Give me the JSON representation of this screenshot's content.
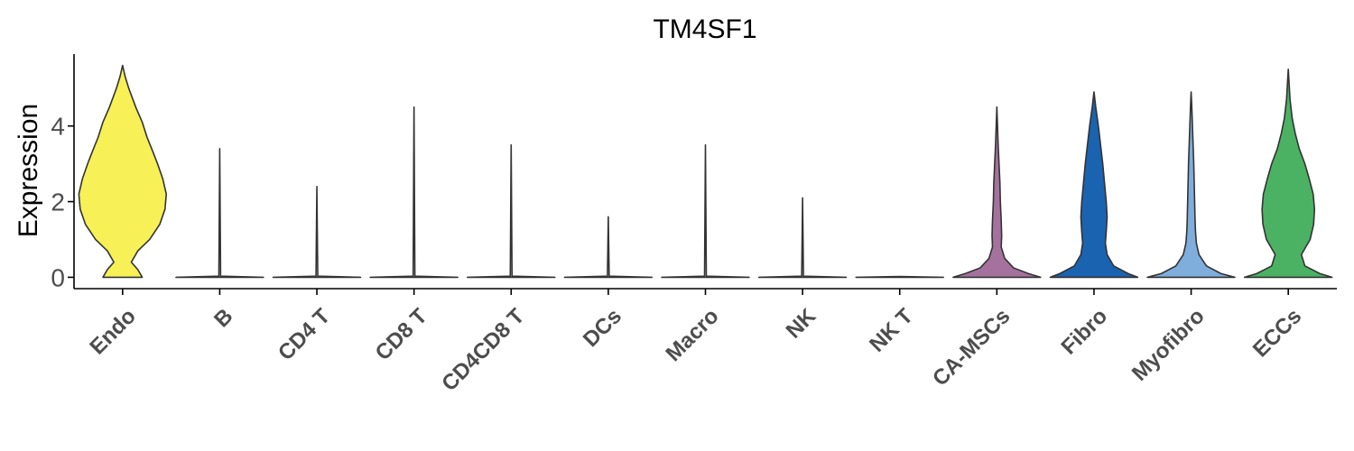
{
  "chart_data": {
    "type": "violin",
    "title": "TM4SF1",
    "xlabel": "",
    "ylabel": "Expression",
    "ylim": [
      -0.3,
      5.9
    ],
    "yticks": [
      0,
      2,
      4
    ],
    "grid": false,
    "legend": "none",
    "categories": [
      "Endo",
      "B",
      "CD4 T",
      "CD8 T",
      "CD4CD8 T",
      "DCs",
      "Macro",
      "NK",
      "NK T",
      "CA-MSCs",
      "Fibro",
      "Myofibro",
      "ECCs"
    ],
    "colors": [
      "#F7F057",
      "#E5E5E5",
      "#E5E5E5",
      "#E5E5E5",
      "#E5E5E5",
      "#E5E5E5",
      "#E5E5E5",
      "#E5E5E5",
      "#E5E5E5",
      "#A5729E",
      "#1A63B0",
      "#7FAEDD",
      "#4BB264"
    ],
    "max_expression": [
      5.6,
      3.4,
      2.4,
      4.5,
      3.5,
      1.6,
      3.5,
      2.1,
      0.0,
      4.5,
      4.9,
      4.9,
      5.5
    ],
    "density_profiles": [
      [
        [
          0.0,
          0.45
        ],
        [
          0.2,
          0.35
        ],
        [
          0.4,
          0.2
        ],
        [
          0.7,
          0.35
        ],
        [
          1.0,
          0.62
        ],
        [
          1.4,
          0.85
        ],
        [
          1.8,
          0.97
        ],
        [
          2.2,
          1.0
        ],
        [
          2.6,
          0.92
        ],
        [
          3.0,
          0.8
        ],
        [
          3.3,
          0.7
        ],
        [
          3.7,
          0.56
        ],
        [
          4.1,
          0.45
        ],
        [
          4.5,
          0.3
        ],
        [
          5.0,
          0.14
        ],
        [
          5.3,
          0.06
        ],
        [
          5.6,
          0.0
        ]
      ],
      [
        [
          0.0,
          1.0
        ],
        [
          0.03,
          0.02
        ],
        [
          3.4,
          0.0
        ]
      ],
      [
        [
          0.0,
          1.0
        ],
        [
          0.03,
          0.02
        ],
        [
          2.4,
          0.0
        ]
      ],
      [
        [
          0.0,
          1.0
        ],
        [
          0.03,
          0.02
        ],
        [
          4.5,
          0.0
        ]
      ],
      [
        [
          0.0,
          1.0
        ],
        [
          0.03,
          0.02
        ],
        [
          3.5,
          0.0
        ]
      ],
      [
        [
          0.0,
          1.0
        ],
        [
          0.03,
          0.02
        ],
        [
          1.6,
          0.0
        ]
      ],
      [
        [
          0.0,
          1.0
        ],
        [
          0.03,
          0.02
        ],
        [
          3.5,
          0.0
        ]
      ],
      [
        [
          0.0,
          1.0
        ],
        [
          0.03,
          0.02
        ],
        [
          2.1,
          0.0
        ]
      ],
      [
        [
          0.0,
          1.0
        ],
        [
          0.02,
          0.0
        ]
      ],
      [
        [
          0.0,
          1.0
        ],
        [
          0.1,
          0.72
        ],
        [
          0.25,
          0.38
        ],
        [
          0.5,
          0.18
        ],
        [
          0.8,
          0.1
        ],
        [
          1.1,
          0.11
        ],
        [
          1.5,
          0.1
        ],
        [
          2.0,
          0.08
        ],
        [
          2.5,
          0.07
        ],
        [
          3.0,
          0.05
        ],
        [
          3.5,
          0.03
        ],
        [
          4.0,
          0.015
        ],
        [
          4.5,
          0.0
        ]
      ],
      [
        [
          0.0,
          1.0
        ],
        [
          0.1,
          0.78
        ],
        [
          0.3,
          0.45
        ],
        [
          0.6,
          0.3
        ],
        [
          0.9,
          0.26
        ],
        [
          1.2,
          0.28
        ],
        [
          1.6,
          0.3
        ],
        [
          2.0,
          0.28
        ],
        [
          2.5,
          0.24
        ],
        [
          3.0,
          0.2
        ],
        [
          3.5,
          0.15
        ],
        [
          4.0,
          0.1
        ],
        [
          4.5,
          0.04
        ],
        [
          4.9,
          0.0
        ]
      ],
      [
        [
          0.0,
          1.0
        ],
        [
          0.1,
          0.68
        ],
        [
          0.3,
          0.35
        ],
        [
          0.6,
          0.18
        ],
        [
          0.9,
          0.12
        ],
        [
          1.2,
          0.1
        ],
        [
          1.5,
          0.09
        ],
        [
          2.0,
          0.08
        ],
        [
          2.5,
          0.07
        ],
        [
          3.0,
          0.06
        ],
        [
          3.5,
          0.045
        ],
        [
          4.0,
          0.03
        ],
        [
          4.5,
          0.015
        ],
        [
          4.9,
          0.0
        ]
      ],
      [
        [
          0.0,
          1.0
        ],
        [
          0.1,
          0.72
        ],
        [
          0.3,
          0.38
        ],
        [
          0.6,
          0.3
        ],
        [
          1.0,
          0.5
        ],
        [
          1.4,
          0.58
        ],
        [
          1.8,
          0.6
        ],
        [
          2.2,
          0.57
        ],
        [
          2.6,
          0.48
        ],
        [
          3.0,
          0.38
        ],
        [
          3.4,
          0.25
        ],
        [
          3.8,
          0.16
        ],
        [
          4.2,
          0.09
        ],
        [
          4.7,
          0.04
        ],
        [
          5.2,
          0.015
        ],
        [
          5.5,
          0.0
        ]
      ]
    ]
  }
}
